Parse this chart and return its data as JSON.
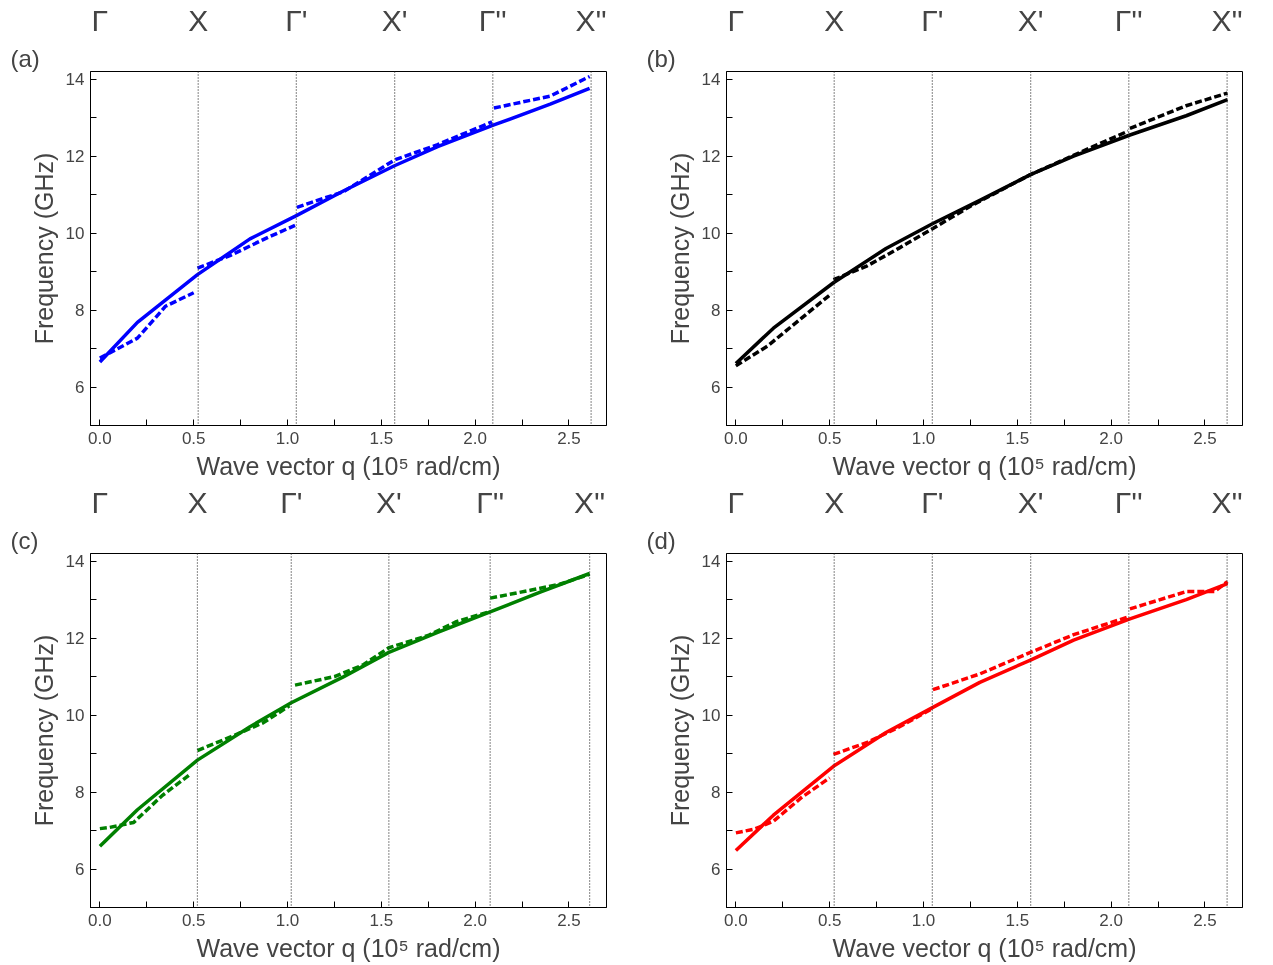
{
  "chart_data": [
    {
      "type": "line",
      "annotations": [
        "(a)",
        "Γ"
      ],
      "xlabel": "Wave vector q (10⁵ rad/cm)",
      "ylabel": "Frequency (GHz)",
      "xlim": [
        -0.05,
        2.7
      ],
      "ylim": [
        5,
        14.2
      ],
      "xticks": [
        {
          "value": 0,
          "label": "0.0"
        },
        {
          "value": 0.25,
          "label": null
        },
        {
          "value": 0.5,
          "label": "0.5"
        },
        {
          "value": 0.75,
          "label": null
        },
        {
          "value": 1.0,
          "label": "1.0"
        },
        {
          "value": 1.25,
          "label": null
        },
        {
          "value": 1.5,
          "label": "1.5"
        },
        {
          "value": 1.75,
          "label": null
        },
        {
          "value": 2.0,
          "label": "2.0"
        },
        {
          "value": 2.25,
          "label": null
        },
        {
          "value": 2.5,
          "label": "2.5"
        }
      ],
      "yticks": [
        {
          "value": 5,
          "label": null
        },
        6,
        {
          "value": 7,
          "label": null
        },
        8,
        {
          "value": 9,
          "label": null
        },
        10,
        {
          "value": 11,
          "label": null
        },
        12,
        {
          "value": 13,
          "label": null
        },
        14
      ],
      "ref_lines": [
        {
          "axis": "x",
          "value": 0.524,
          "label": "X",
          "line_style": "dotted"
        },
        {
          "axis": "x",
          "value": 1.047,
          "label": "Γ'",
          "line_style": "dotted"
        },
        {
          "axis": "x",
          "value": 1.571,
          "label": "X'",
          "line_style": "dotted"
        },
        {
          "axis": "x",
          "value": 2.094,
          "label": "Γ''",
          "line_style": "dotted"
        },
        {
          "axis": "x",
          "value": 2.618,
          "label": "X''",
          "line_style": "dotted"
        }
      ],
      "grid": false,
      "series": [
        {
          "color": "#0000ff",
          "line_style": "solid",
          "x": [
            0,
            0.2,
            0.52,
            0.8,
            1.05,
            1.3,
            1.57,
            1.8,
            2.1,
            2.4,
            2.61
          ],
          "values": [
            6.65,
            7.68,
            8.92,
            9.85,
            10.46,
            11.1,
            11.75,
            12.25,
            12.81,
            13.35,
            13.76
          ]
        },
        {
          "color": "#0000ff",
          "line_style": "dashed",
          "x": [
            0,
            0.2,
            0.35,
            0.5,
            0.51,
            0.52,
            0.7,
            0.9,
            1.04,
            1.045,
            1.05,
            1.3,
            1.57,
            1.8,
            2.09,
            2.095,
            2.1,
            2.4,
            2.61
          ],
          "values": [
            6.75,
            7.27,
            8.1,
            8.45,
            null,
            9.09,
            9.43,
            9.9,
            10.2,
            null,
            10.67,
            11.08,
            11.9,
            12.3,
            12.89,
            null,
            13.25,
            13.56,
            14.07
          ]
        }
      ]
    },
    {
      "type": "line",
      "annotations": [
        "(b)",
        "Γ"
      ],
      "xlabel": "Wave vector q (10⁵ rad/cm)",
      "ylabel": "Frequency (GHz)",
      "xlim": [
        -0.05,
        2.7
      ],
      "ylim": [
        5,
        14.2
      ],
      "xticks": [
        {
          "value": 0,
          "label": "0.0"
        },
        {
          "value": 0.25,
          "label": null
        },
        {
          "value": 0.5,
          "label": "0.5"
        },
        {
          "value": 0.75,
          "label": null
        },
        {
          "value": 1.0,
          "label": "1.0"
        },
        {
          "value": 1.25,
          "label": null
        },
        {
          "value": 1.5,
          "label": "1.5"
        },
        {
          "value": 1.75,
          "label": null
        },
        {
          "value": 2.0,
          "label": "2.0"
        },
        {
          "value": 2.25,
          "label": null
        },
        {
          "value": 2.5,
          "label": "2.5"
        }
      ],
      "yticks": [
        {
          "value": 5,
          "label": null
        },
        6,
        {
          "value": 7,
          "label": null
        },
        8,
        {
          "value": 9,
          "label": null
        },
        10,
        {
          "value": 11,
          "label": null
        },
        12,
        {
          "value": 13,
          "label": null
        },
        14
      ],
      "ref_lines": [
        {
          "axis": "x",
          "value": 0.524,
          "label": "X",
          "line_style": "dotted"
        },
        {
          "axis": "x",
          "value": 1.047,
          "label": "Γ'",
          "line_style": "dotted"
        },
        {
          "axis": "x",
          "value": 1.571,
          "label": "X'",
          "line_style": "dotted"
        },
        {
          "axis": "x",
          "value": 2.094,
          "label": "Γ''",
          "line_style": "dotted"
        },
        {
          "axis": "x",
          "value": 2.618,
          "label": "X''",
          "line_style": "dotted"
        }
      ],
      "grid": false,
      "series": [
        {
          "color": "#000000",
          "line_style": "solid",
          "x": [
            0,
            0.2,
            0.52,
            0.8,
            1.05,
            1.3,
            1.57,
            1.8,
            2.1,
            2.4,
            2.62
          ],
          "values": [
            6.61,
            7.53,
            8.71,
            9.6,
            10.25,
            10.85,
            11.52,
            12.0,
            12.55,
            13.05,
            13.47
          ]
        },
        {
          "color": "#000000",
          "line_style": "dashed",
          "x": [
            0,
            0.17,
            0.35,
            0.51,
            0.515,
            0.52,
            0.7,
            0.87,
            1.04,
            1.25,
            1.57,
            1.9,
            2.09,
            2.095,
            2.1,
            2.4,
            2.62
          ],
          "values": [
            6.55,
            7.07,
            7.79,
            8.43,
            null,
            8.79,
            9.15,
            9.61,
            10.09,
            10.7,
            11.52,
            12.24,
            12.65,
            null,
            12.72,
            13.31,
            13.64
          ]
        }
      ]
    },
    {
      "type": "line",
      "annotations": [
        "(c)",
        "Γ"
      ],
      "xlabel": "Wave vector q (10⁵ rad/cm)",
      "ylabel": "Frequency (GHz)",
      "xlim": [
        -0.05,
        2.7
      ],
      "ylim": [
        5,
        14.2
      ],
      "xticks": [
        {
          "value": 0,
          "label": "0.0"
        },
        {
          "value": 0.25,
          "label": null
        },
        {
          "value": 0.5,
          "label": "0.5"
        },
        {
          "value": 0.75,
          "label": null
        },
        {
          "value": 1.0,
          "label": "1.0"
        },
        {
          "value": 1.25,
          "label": null
        },
        {
          "value": 1.5,
          "label": "1.5"
        },
        {
          "value": 1.75,
          "label": null
        },
        {
          "value": 2.0,
          "label": "2.0"
        },
        {
          "value": 2.25,
          "label": null
        },
        {
          "value": 2.5,
          "label": "2.5"
        }
      ],
      "yticks": [
        {
          "value": 5,
          "label": null
        },
        6,
        {
          "value": 7,
          "label": null
        },
        8,
        {
          "value": 9,
          "label": null
        },
        10,
        {
          "value": 11,
          "label": null
        },
        12,
        {
          "value": 13,
          "label": null
        },
        14
      ],
      "ref_lines": [
        {
          "axis": "x",
          "value": 0.52,
          "label": "X",
          "line_style": "dotted"
        },
        {
          "axis": "x",
          "value": 1.02,
          "label": "Γ'",
          "line_style": "dotted"
        },
        {
          "axis": "x",
          "value": 1.54,
          "label": "X'",
          "line_style": "dotted"
        },
        {
          "axis": "x",
          "value": 2.08,
          "label": "Γ''",
          "line_style": "dotted"
        },
        {
          "axis": "x",
          "value": 2.61,
          "label": "X''",
          "line_style": "dotted"
        }
      ],
      "grid": false,
      "series": [
        {
          "color": "#008000",
          "line_style": "solid",
          "x": [
            0,
            0.2,
            0.52,
            0.8,
            1.02,
            1.3,
            1.54,
            1.8,
            2.08,
            2.35,
            2.61
          ],
          "values": [
            6.59,
            7.54,
            8.83,
            9.7,
            10.32,
            11.0,
            11.63,
            12.15,
            12.68,
            13.2,
            13.68
          ]
        },
        {
          "color": "#008000",
          "line_style": "dashed",
          "x": [
            0,
            0.05,
            0.18,
            0.33,
            0.48,
            0.5,
            0.52,
            0.7,
            0.87,
            1.01,
            1.03,
            1.04,
            1.25,
            1.4,
            1.54,
            1.75,
            1.9,
            2.07,
            2.075,
            2.08,
            2.3,
            2.45,
            2.61
          ],
          "values": [
            7.05,
            7.08,
            7.21,
            7.9,
            8.46,
            null,
            9.08,
            9.44,
            9.8,
            10.24,
            null,
            10.78,
            11.0,
            11.3,
            11.75,
            12.07,
            12.43,
            12.68,
            null,
            13.04,
            13.25,
            13.4,
            13.66
          ]
        }
      ]
    },
    {
      "type": "line",
      "annotations": [
        "(d)",
        "Γ"
      ],
      "xlabel": "Wave vector q (10⁵ rad/cm)",
      "ylabel": "Frequency (GHz)",
      "xlim": [
        -0.05,
        2.7
      ],
      "ylim": [
        5,
        14.2
      ],
      "xticks": [
        {
          "value": 0,
          "label": "0.0"
        },
        {
          "value": 0.25,
          "label": null
        },
        {
          "value": 0.5,
          "label": "0.5"
        },
        {
          "value": 0.75,
          "label": null
        },
        {
          "value": 1.0,
          "label": "1.0"
        },
        {
          "value": 1.25,
          "label": null
        },
        {
          "value": 1.5,
          "label": "1.5"
        },
        {
          "value": 1.75,
          "label": null
        },
        {
          "value": 2.0,
          "label": "2.0"
        },
        {
          "value": 2.25,
          "label": null
        },
        {
          "value": 2.5,
          "label": "2.5"
        }
      ],
      "yticks": [
        {
          "value": 5,
          "label": null
        },
        6,
        {
          "value": 7,
          "label": null
        },
        8,
        {
          "value": 9,
          "label": null
        },
        10,
        {
          "value": 11,
          "label": null
        },
        12,
        {
          "value": 13,
          "label": null
        },
        14
      ],
      "ref_lines": [
        {
          "axis": "x",
          "value": 0.524,
          "label": "X",
          "line_style": "dotted"
        },
        {
          "axis": "x",
          "value": 1.047,
          "label": "Γ'",
          "line_style": "dotted"
        },
        {
          "axis": "x",
          "value": 1.571,
          "label": "X'",
          "line_style": "dotted"
        },
        {
          "axis": "x",
          "value": 2.094,
          "label": "Γ''",
          "line_style": "dotted"
        },
        {
          "axis": "x",
          "value": 2.618,
          "label": "X''",
          "line_style": "dotted"
        }
      ],
      "grid": false,
      "series": [
        {
          "color": "#ff0000",
          "line_style": "solid",
          "x": [
            0,
            0.2,
            0.52,
            0.8,
            1.05,
            1.3,
            1.57,
            1.8,
            2.1,
            2.4,
            2.62
          ],
          "values": [
            6.48,
            7.4,
            8.67,
            9.55,
            10.2,
            10.85,
            11.43,
            11.95,
            12.5,
            13.0,
            13.42
          ]
        },
        {
          "color": "#ff0000",
          "line_style": "dashed",
          "x": [
            0,
            0.1,
            0.2,
            0.35,
            0.5,
            0.51,
            0.52,
            0.7,
            0.87,
            1.04,
            1.045,
            1.05,
            1.3,
            1.57,
            1.8,
            2.09,
            2.095,
            2.1,
            2.4,
            2.55,
            2.62
          ],
          "values": [
            6.94,
            7.04,
            7.24,
            7.86,
            8.37,
            null,
            8.98,
            9.29,
            9.69,
            10.15,
            null,
            10.66,
            11.07,
            11.63,
            12.09,
            12.55,
            null,
            12.76,
            13.21,
            13.21,
            13.47
          ]
        }
      ]
    }
  ]
}
